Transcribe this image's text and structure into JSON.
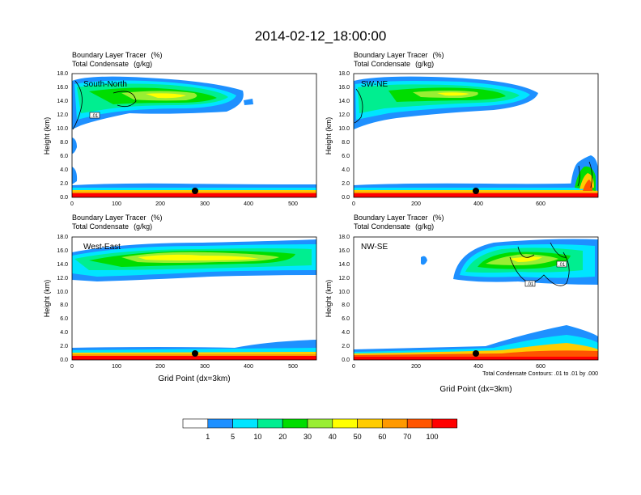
{
  "title": "2014-02-12_18:00:00",
  "panel_header": {
    "line1_label": "Boundary Layer Tracer",
    "line1_unit": "(%)",
    "line2_label": "Total Condensate",
    "line2_unit": "(g/kg)"
  },
  "xlabel": "Grid Point (dx=3km)",
  "ylabel": "Height (km)",
  "contour_note": "Total Condensate Contours: .01 to .01 by .000",
  "colorbar": {
    "colors": [
      "#ffffff",
      "#1e90ff",
      "#00e5ff",
      "#00ee90",
      "#00dd00",
      "#99ee33",
      "#ffff00",
      "#ffcc00",
      "#ff9900",
      "#ff5500",
      "#ff0000"
    ],
    "labels": [
      "1",
      "5",
      "10",
      "20",
      "30",
      "40",
      "50",
      "60",
      "70",
      "100"
    ]
  },
  "chart_data": [
    {
      "type": "contour",
      "panel_label": "South-North",
      "ylim": [
        0,
        18
      ],
      "xlim": [
        0,
        555
      ],
      "xticks": [
        "0",
        "100",
        "200",
        "300",
        "400",
        "500"
      ],
      "yticks": [
        "0.0",
        "2.0",
        "4.0",
        "6.0",
        "8.0",
        "10.0",
        "12.0",
        "14.0",
        "16.0",
        "18.0"
      ],
      "marker": {
        "x": 280,
        "y": 1.0
      },
      "contour_labels": [
        ".01"
      ]
    },
    {
      "type": "contour",
      "panel_label": "SW-NE",
      "ylim": [
        0,
        18
      ],
      "xlim": [
        0,
        785
      ],
      "xticks": [
        "0",
        "200",
        "400",
        "600"
      ],
      "yticks": [
        "0.0",
        "2.0",
        "4.0",
        "6.0",
        "8.0",
        "10.0",
        "12.0",
        "14.0",
        "16.0",
        "18.0"
      ],
      "marker": {
        "x": 393,
        "y": 1.0
      },
      "contour_labels": []
    },
    {
      "type": "contour",
      "panel_label": "West-East",
      "ylim": [
        0,
        18
      ],
      "xlim": [
        0,
        555
      ],
      "xticks": [
        "0",
        "100",
        "200",
        "300",
        "400",
        "500"
      ],
      "yticks": [
        "0.0",
        "2.0",
        "4.0",
        "6.0",
        "8.0",
        "10.0",
        "12.0",
        "14.0",
        "16.0",
        "18.0"
      ],
      "marker": {
        "x": 280,
        "y": 1.0
      },
      "contour_labels": []
    },
    {
      "type": "contour",
      "panel_label": "NW-SE",
      "ylim": [
        0,
        18
      ],
      "xlim": [
        0,
        785
      ],
      "xticks": [
        "0",
        "200",
        "400",
        "600"
      ],
      "yticks": [
        "0.0",
        "2.0",
        "4.0",
        "6.0",
        "8.0",
        "10.0",
        "12.0",
        "14.0",
        "16.0",
        "18.0"
      ],
      "marker": {
        "x": 393,
        "y": 1.0
      },
      "contour_labels": [
        ".01",
        ".01"
      ]
    }
  ]
}
